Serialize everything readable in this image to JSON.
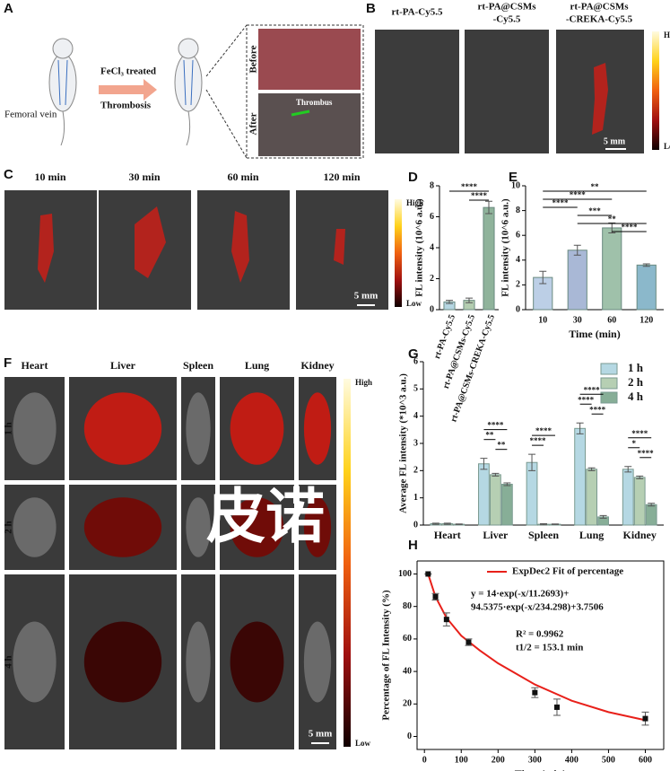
{
  "panel_labels": [
    "A",
    "B",
    "C",
    "D",
    "E",
    "F",
    "G",
    "H"
  ],
  "panel_a": {
    "labels": [
      "Femoral vein",
      "FeCl₃ treated",
      "Thrombosis",
      "Before",
      "After",
      "Thrombus"
    ]
  },
  "panel_b": {
    "columns": [
      "rt-PA-Cy5.5",
      "rt-PA@CSMs",
      "-Cy5.5",
      "rt-PA@CSMs",
      "-CREKA-Cy5.5"
    ],
    "colorbar": [
      "High",
      "Low"
    ],
    "scale_bar": "5 mm"
  },
  "panel_c": {
    "columns": [
      "10 min",
      "30 min",
      "60 min",
      "120 min"
    ],
    "colorbar": [
      "High",
      "Low"
    ],
    "scale_bar": "5 mm"
  },
  "panel_f": {
    "columns": [
      "Heart",
      "Liver",
      "Spleen",
      "Lung",
      "Kidney"
    ],
    "rows": [
      "1 h",
      "2 h",
      "4 h"
    ],
    "colorbar": [
      "High",
      "Low"
    ],
    "scale_bar": "5 mm"
  },
  "watermark": "皮诺",
  "chart_data": [
    {
      "type": "bar",
      "ylabel": "FL intensity (10^6 a.u.)",
      "categories": [
        "rt-PA-Cy5.5",
        "rt-PA@CSMs-Cy5.5",
        "rt-PA@CSMs-CREKA-Cy5.5"
      ],
      "values": [
        0.5,
        0.6,
        6.6
      ],
      "errors": [
        0.1,
        0.15,
        0.4
      ],
      "colors": [
        "#b5d6e2",
        "#b3cdb0",
        "#8fb39b"
      ],
      "ylim": [
        0,
        8
      ],
      "yticks": [
        0,
        2,
        4,
        6,
        8
      ],
      "significance": [
        {
          "label": "****",
          "between": [
            0,
            2
          ]
        },
        {
          "label": "****",
          "between": [
            1,
            2
          ]
        }
      ]
    },
    {
      "type": "bar",
      "ylabel": "FL intensity (10^6 a.u.)",
      "xlabel": "Time (min)",
      "categories": [
        "10",
        "30",
        "60",
        "120"
      ],
      "values": [
        2.6,
        4.8,
        6.6,
        3.6
      ],
      "errors": [
        0.5,
        0.4,
        0.4,
        0.1
      ],
      "colors": [
        "#bccfe6",
        "#a9b8d6",
        "#9fc1aa",
        "#8bb8cb"
      ],
      "ylim": [
        0,
        10
      ],
      "yticks": [
        0,
        2,
        4,
        6,
        8,
        10
      ],
      "significance": [
        {
          "label": "**",
          "between": [
            0,
            3
          ]
        },
        {
          "label": "****",
          "between": [
            0,
            2
          ]
        },
        {
          "label": "****",
          "between": [
            0,
            1
          ]
        },
        {
          "label": "***",
          "between": [
            1,
            2
          ]
        },
        {
          "label": "**",
          "between": [
            1,
            3
          ]
        },
        {
          "label": "****",
          "between": [
            2,
            3
          ]
        }
      ]
    },
    {
      "type": "grouped_bar",
      "ylabel": "Average FL intensity (*10^3 a.u.)",
      "categories": [
        "Heart",
        "Liver",
        "Spleen",
        "Lung",
        "Kidney"
      ],
      "series": [
        {
          "name": "1 h",
          "color": "#b5d8e3",
          "values": [
            0.05,
            2.25,
            2.3,
            3.55,
            2.05
          ],
          "errors": [
            0.02,
            0.2,
            0.3,
            0.2,
            0.1
          ]
        },
        {
          "name": "2 h",
          "color": "#b6cfb3",
          "values": [
            0.05,
            1.85,
            0.03,
            2.05,
            1.75
          ],
          "errors": [
            0.02,
            0.05,
            0.02,
            0.05,
            0.05
          ]
        },
        {
          "name": "4 h",
          "color": "#87ae97",
          "values": [
            0.03,
            1.5,
            0.03,
            0.3,
            0.75
          ],
          "errors": [
            0.01,
            0.05,
            0.01,
            0.05,
            0.05
          ]
        }
      ],
      "ylim": [
        0,
        6
      ],
      "yticks": [
        0,
        1,
        2,
        3,
        4,
        5,
        6
      ],
      "legend": "top-right",
      "significance": [
        {
          "category": 1,
          "items": [
            {
              "label": "****",
              "between": [
                0,
                2
              ]
            },
            {
              "label": "**",
              "between": [
                0,
                1
              ]
            },
            {
              "label": "**",
              "between": [
                1,
                2
              ]
            }
          ]
        },
        {
          "category": 2,
          "items": [
            {
              "label": "****",
              "between": [
                0,
                2
              ]
            },
            {
              "label": "****",
              "between": [
                0,
                1
              ]
            }
          ]
        },
        {
          "category": 3,
          "items": [
            {
              "label": "****",
              "between": [
                0,
                2
              ]
            },
            {
              "label": "****",
              "between": [
                0,
                1
              ]
            },
            {
              "label": "****",
              "between": [
                1,
                2
              ]
            }
          ]
        },
        {
          "category": 4,
          "items": [
            {
              "label": "****",
              "between": [
                0,
                2
              ]
            },
            {
              "label": "*",
              "between": [
                0,
                1
              ]
            },
            {
              "label": "****",
              "between": [
                1,
                2
              ]
            }
          ]
        }
      ]
    },
    {
      "type": "scatter",
      "xlabel": "Time (min)",
      "ylabel": "Percentage of FL Intensity (%)",
      "x": [
        10,
        30,
        60,
        120,
        300,
        360,
        600
      ],
      "values": [
        100,
        86,
        72,
        58,
        27,
        18,
        11
      ],
      "errors": [
        0,
        2,
        4,
        2,
        3,
        5,
        4
      ],
      "fit": {
        "name": "ExpDec2 Fit of percentage",
        "color": "#e8201a",
        "x": [
          10,
          30,
          60,
          100,
          150,
          200,
          300,
          400,
          500,
          600
        ],
        "values": [
          100,
          86,
          73,
          62,
          53,
          45,
          32,
          22,
          15,
          10
        ]
      },
      "annotations": [
        "y = 14·exp(-x/11.2693)+",
        "94.5375·exp(-x/234.298)+3.7506",
        "R² = 0.9962",
        "t1/2 = 153.1 min"
      ],
      "xlim": [
        -20,
        650
      ],
      "xticks": [
        0,
        100,
        200,
        300,
        400,
        500,
        600
      ],
      "ylim": [
        -8,
        108
      ],
      "yticks": [
        0,
        20,
        40,
        60,
        80,
        100
      ]
    }
  ]
}
